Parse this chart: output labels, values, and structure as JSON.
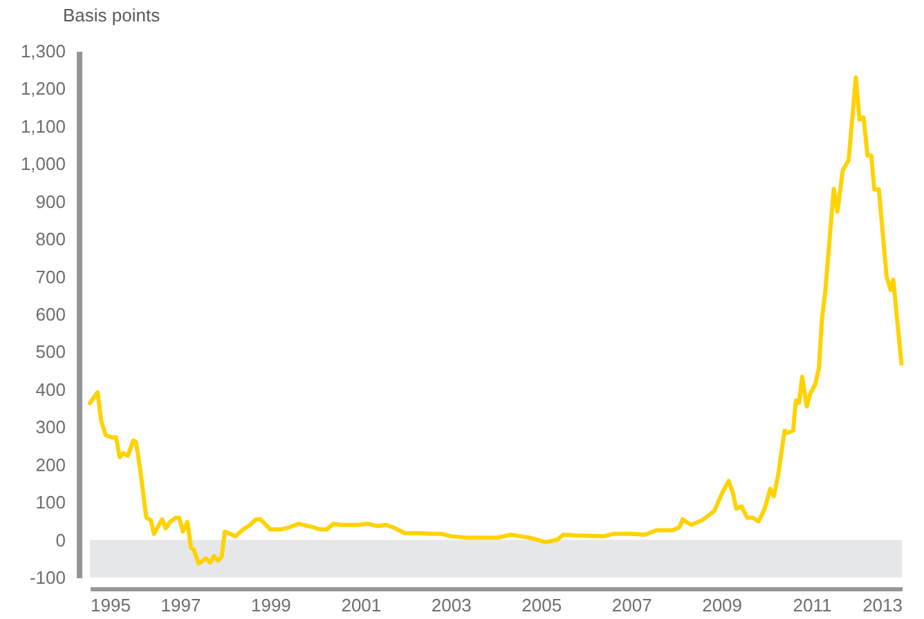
{
  "chart_data": {
    "type": "line",
    "ylabel": "Basis points",
    "x": [
      1995.0,
      1995.17,
      1995.25,
      1995.35,
      1995.48,
      1995.58,
      1995.66,
      1995.74,
      1995.84,
      1995.96,
      1996.02,
      1996.1,
      1996.25,
      1996.35,
      1996.42,
      1996.6,
      1996.68,
      1996.78,
      1996.9,
      1996.98,
      1997.06,
      1997.16,
      1997.24,
      1997.3,
      1997.41,
      1997.57,
      1997.67,
      1997.75,
      1997.84,
      1997.92,
      1997.99,
      1998.23,
      1998.4,
      1998.55,
      1998.68,
      1998.78,
      1999.0,
      1999.23,
      1999.43,
      1999.62,
      1999.95,
      2000.1,
      2000.25,
      2000.4,
      2000.55,
      2000.95,
      2001.16,
      2001.37,
      2001.57,
      2001.77,
      2001.98,
      2002.29,
      2002.6,
      2002.8,
      2003.0,
      2003.36,
      2003.5,
      2004.03,
      2004.34,
      2004.75,
      2005.11,
      2005.37,
      2005.49,
      2005.78,
      2006.4,
      2006.6,
      2006.99,
      2007.31,
      2007.56,
      2007.92,
      2008.07,
      2008.14,
      2008.33,
      2008.58,
      2008.84,
      2009.02,
      2009.16,
      2009.25,
      2009.33,
      2009.45,
      2009.57,
      2009.7,
      2009.82,
      2009.96,
      2010.08,
      2010.16,
      2010.26,
      2010.4,
      2010.47,
      2010.59,
      2010.65,
      2010.72,
      2010.79,
      2010.89,
      2010.97,
      2011.08,
      2011.16,
      2011.23,
      2011.3,
      2011.49,
      2011.57,
      2011.69,
      2011.82,
      2011.98,
      2012.06,
      2012.15,
      2012.24,
      2012.32,
      2012.39,
      2012.49,
      2012.66,
      2012.75,
      2012.81,
      2012.99
    ],
    "series": [
      {
        "color": "#ffd200",
        "values": [
          364,
          393,
          316,
          279,
          273,
          273,
          220,
          231,
          224,
          264,
          261,
          200,
          59,
          53,
          16,
          55,
          31,
          48,
          59,
          59,
          22,
          48,
          -21,
          -25,
          -63,
          -49,
          -60,
          -43,
          -55,
          -45,
          22,
          10,
          28,
          40,
          55,
          55,
          28,
          28,
          34,
          43,
          34,
          28,
          28,
          43,
          40,
          40,
          43,
          37,
          40,
          31,
          18,
          18,
          16,
          16,
          10,
          6,
          6,
          6,
          14,
          6,
          -6,
          1,
          14,
          12,
          10,
          16,
          16,
          14,
          26,
          26,
          34,
          55,
          40,
          53,
          77,
          126,
          157,
          126,
          83,
          89,
          59,
          59,
          49,
          83,
          136,
          116,
          175,
          291,
          285,
          291,
          371,
          365,
          434,
          355,
          389,
          414,
          456,
          591,
          658,
          934,
          873,
          983,
          1010,
          1230,
          1118,
          1124,
          1022,
          1022,
          932,
          932,
          701,
          665,
          692,
          469
        ]
      }
    ],
    "xlim": [
      1995,
      2013
    ],
    "xticks": [
      1995,
      {
        "value": 1996,
        "label": null
      },
      1997,
      {
        "value": 1998,
        "label": null
      },
      1999,
      {
        "value": 2000,
        "label": null
      },
      2001,
      {
        "value": 2002,
        "label": null
      },
      2003,
      {
        "value": 2004,
        "label": null
      },
      2005,
      {
        "value": 2006,
        "label": null
      },
      2007,
      {
        "value": 2008,
        "label": null
      },
      2009,
      {
        "value": 2010,
        "label": null
      },
      2011,
      {
        "value": 2012,
        "label": null
      },
      2013
    ],
    "ylim": [
      -100,
      1300
    ],
    "yticks": [
      -100,
      0,
      {
        "value": 100,
        "label": "100"
      },
      {
        "value": 200,
        "label": "200"
      },
      {
        "value": 300,
        "label": "300"
      },
      {
        "value": 400,
        "label": "400"
      },
      {
        "value": 500,
        "label": "500"
      },
      {
        "value": 600,
        "label": "600"
      },
      {
        "value": 700,
        "label": "700"
      },
      {
        "value": 800,
        "label": "800"
      },
      {
        "value": 900,
        "label": "900"
      },
      {
        "value": 1000,
        "label": "1,000"
      },
      {
        "value": 1100,
        "label": "1,100"
      },
      {
        "value": 1200,
        "label": "1,200"
      },
      {
        "value": 1300,
        "label": "1,300"
      }
    ],
    "bands": [
      {
        "axis": "y",
        "from": -100,
        "to": 0,
        "color": "#e6e7e8"
      }
    ],
    "grid": false,
    "legend": false,
    "line_style": "solid",
    "marker": "none"
  }
}
